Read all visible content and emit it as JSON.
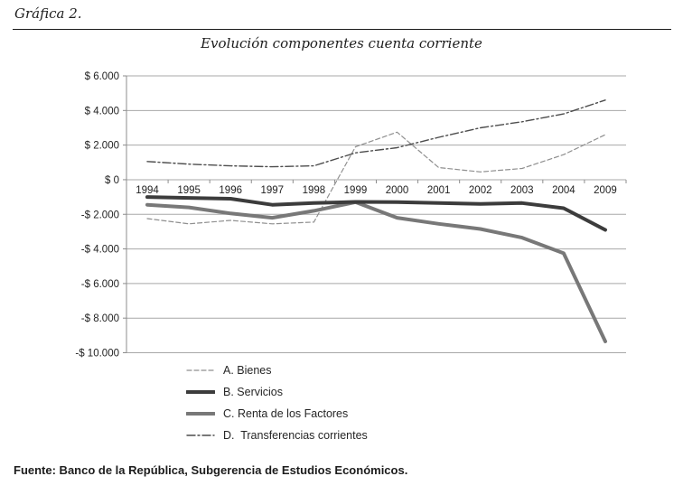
{
  "header": {
    "figure_label": "Gráfica 2."
  },
  "footer": {
    "source": "Fuente: Banco de la República, Subgerencia de Estudios Económicos."
  },
  "chart_data": {
    "type": "line",
    "title": "Evolución componentes cuenta corriente",
    "categories": [
      "1994",
      "1995",
      "1996",
      "1997",
      "1998",
      "1999",
      "2000",
      "2001",
      "2002",
      "2003",
      "2004",
      "2009"
    ],
    "series": [
      {
        "name": "A. Bienes",
        "values": [
          -2250,
          -2550,
          -2350,
          -2550,
          -2450,
          1900,
          2750,
          700,
          450,
          650,
          1450,
          2600
        ],
        "color": "#8f8f8f",
        "width": 1.2,
        "dash": "5,3"
      },
      {
        "name": "B. Servicios",
        "values": [
          -1000,
          -1050,
          -1100,
          -1450,
          -1350,
          -1280,
          -1300,
          -1350,
          -1400,
          -1350,
          -1650,
          -2900
        ],
        "color": "#3c3c3c",
        "width": 4,
        "dash": ""
      },
      {
        "name": "C. Renta de los Factores",
        "values": [
          -1450,
          -1600,
          -1950,
          -2200,
          -1800,
          -1300,
          -2200,
          -2550,
          -2850,
          -3350,
          -4250,
          -9350
        ],
        "color": "#787878",
        "width": 4,
        "dash": ""
      },
      {
        "name": "D.  Transferencias corrientes",
        "values": [
          1050,
          900,
          800,
          750,
          800,
          1550,
          1850,
          2450,
          3000,
          3350,
          3800,
          4600
        ],
        "color": "#4d4d4d",
        "width": 1.4,
        "dash": "9,3,2,3"
      }
    ],
    "y_ticks": [
      {
        "label": "$ 6.000",
        "value": 6000
      },
      {
        "label": "$ 4.000",
        "value": 4000
      },
      {
        "label": "$ 2.000",
        "value": 2000
      },
      {
        "label": "$ 0",
        "value": 0
      },
      {
        "label": "-$ 2.000",
        "value": -2000
      },
      {
        "label": "-$ 4.000",
        "value": -4000
      },
      {
        "label": "-$ 6.000",
        "value": -6000
      },
      {
        "label": "-$ 8.000",
        "value": -8000
      },
      {
        "label": "-$ 10.000",
        "value": -10000
      }
    ],
    "ylim": [
      -10000,
      6000
    ],
    "xlabel": "",
    "ylabel": "",
    "grid": true,
    "legend_position": "bottom-left",
    "grid_color": "#a8a8a8",
    "axis_color": "#8c8c8c"
  }
}
